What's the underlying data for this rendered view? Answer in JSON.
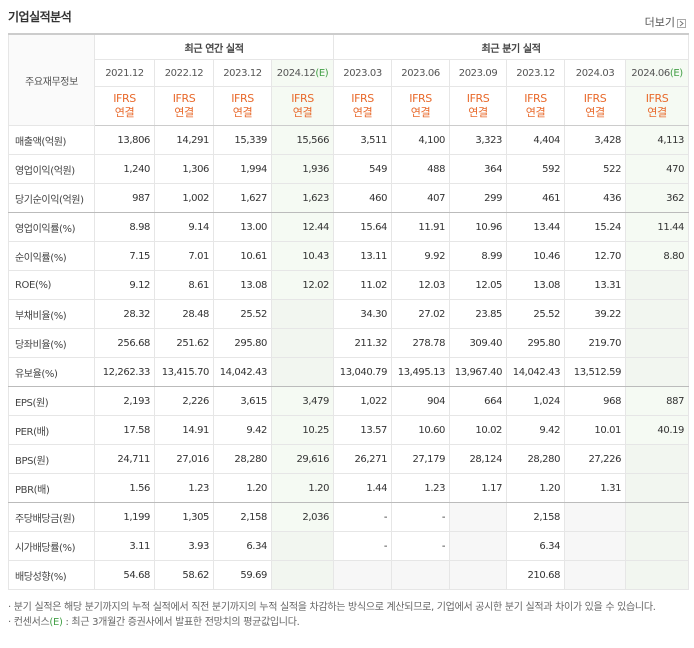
{
  "header": {
    "title": "기업실적분석",
    "more": "더보기"
  },
  "table": {
    "corner": "주요재무정보",
    "groups": [
      "최근 연간 실적",
      "최근 분기 실적"
    ],
    "periods": [
      {
        "label": "2021.12"
      },
      {
        "label": "2022.12"
      },
      {
        "label": "2023.12"
      },
      {
        "label": "2024.12",
        "estimate": "(E)"
      },
      {
        "label": "2023.03"
      },
      {
        "label": "2023.06"
      },
      {
        "label": "2023.09"
      },
      {
        "label": "2023.12"
      },
      {
        "label": "2024.03"
      },
      {
        "label": "2024.06",
        "estimate": "(E)"
      }
    ],
    "standards": [
      [
        "IFRS",
        "연결"
      ],
      [
        "IFRS",
        "연결"
      ],
      [
        "IFRS",
        "연결"
      ],
      [
        "IFRS",
        "연결"
      ],
      [
        "IFRS",
        "연결"
      ],
      [
        "IFRS",
        "연결"
      ],
      [
        "IFRS",
        "연결"
      ],
      [
        "IFRS",
        "연결"
      ],
      [
        "IFRS",
        "연결"
      ],
      [
        "IFRS",
        "연결"
      ]
    ],
    "rows": [
      {
        "label": "매출액(억원)",
        "values": [
          "13,806",
          "14,291",
          "15,339",
          "15,566",
          "3,511",
          "4,100",
          "3,323",
          "4,404",
          "3,428",
          "4,113"
        ]
      },
      {
        "label": "영업이익(억원)",
        "values": [
          "1,240",
          "1,306",
          "1,994",
          "1,936",
          "549",
          "488",
          "364",
          "592",
          "522",
          "470"
        ]
      },
      {
        "label": "당기순이익(억원)",
        "values": [
          "987",
          "1,002",
          "1,627",
          "1,623",
          "460",
          "407",
          "299",
          "461",
          "436",
          "362"
        ]
      },
      {
        "label": "영업이익률(%)",
        "values": [
          "8.98",
          "9.14",
          "13.00",
          "12.44",
          "15.64",
          "11.91",
          "10.96",
          "13.44",
          "15.24",
          "11.44"
        ]
      },
      {
        "label": "순이익률(%)",
        "values": [
          "7.15",
          "7.01",
          "10.61",
          "10.43",
          "13.11",
          "9.92",
          "8.99",
          "10.46",
          "12.70",
          "8.80"
        ]
      },
      {
        "label": "ROE(%)",
        "values": [
          "9.12",
          "8.61",
          "13.08",
          "12.02",
          "11.02",
          "12.03",
          "12.05",
          "13.08",
          "13.31",
          null
        ]
      },
      {
        "label": "부채비율(%)",
        "values": [
          "28.32",
          "28.48",
          "25.52",
          null,
          "34.30",
          "27.02",
          "23.85",
          "25.52",
          "39.22",
          null
        ]
      },
      {
        "label": "당좌비율(%)",
        "values": [
          "256.68",
          "251.62",
          "295.80",
          null,
          "211.32",
          "278.78",
          "309.40",
          "295.80",
          "219.70",
          null
        ]
      },
      {
        "label": "유보율(%)",
        "values": [
          "12,262.33",
          "13,415.70",
          "14,042.43",
          null,
          "13,040.79",
          "13,495.13",
          "13,967.40",
          "14,042.43",
          "13,512.59",
          null
        ]
      },
      {
        "label": "EPS(원)",
        "values": [
          "2,193",
          "2,226",
          "3,615",
          "3,479",
          "1,022",
          "904",
          "664",
          "1,024",
          "968",
          "887"
        ]
      },
      {
        "label": "PER(배)",
        "values": [
          "17.58",
          "14.91",
          "9.42",
          "10.25",
          "13.57",
          "10.60",
          "10.02",
          "9.42",
          "10.01",
          "40.19"
        ]
      },
      {
        "label": "BPS(원)",
        "values": [
          "24,711",
          "27,016",
          "28,280",
          "29,616",
          "26,271",
          "27,179",
          "28,124",
          "28,280",
          "27,226",
          null
        ]
      },
      {
        "label": "PBR(배)",
        "values": [
          "1.56",
          "1.23",
          "1.20",
          "1.20",
          "1.44",
          "1.23",
          "1.17",
          "1.20",
          "1.31",
          null
        ]
      },
      {
        "label": "주당배당금(원)",
        "values": [
          "1,199",
          "1,305",
          "2,158",
          "2,036",
          "-",
          "-",
          null,
          "2,158",
          null,
          null
        ]
      },
      {
        "label": "시가배당률(%)",
        "values": [
          "3.11",
          "3.93",
          "6.34",
          null,
          "-",
          "-",
          null,
          "6.34",
          null,
          null
        ]
      },
      {
        "label": "배당성향(%)",
        "values": [
          "54.68",
          "58.62",
          "59.69",
          null,
          null,
          null,
          null,
          "210.68",
          null,
          null
        ]
      }
    ]
  },
  "notes": [
    {
      "text": "분기 실적은 해당 분기까지의 누적 실적에서 직전 분기까지의 누적 실적을 차감하는 방식으로 계산되므로, 기업에서 공시한 분기 실적과 차이가 있을 수 있습니다."
    },
    {
      "term": "컨센서스",
      "estimate": "(E)",
      "text": " : 최근 3개월간 증권사에서 발표한 전망치의 평균값입니다."
    }
  ]
}
